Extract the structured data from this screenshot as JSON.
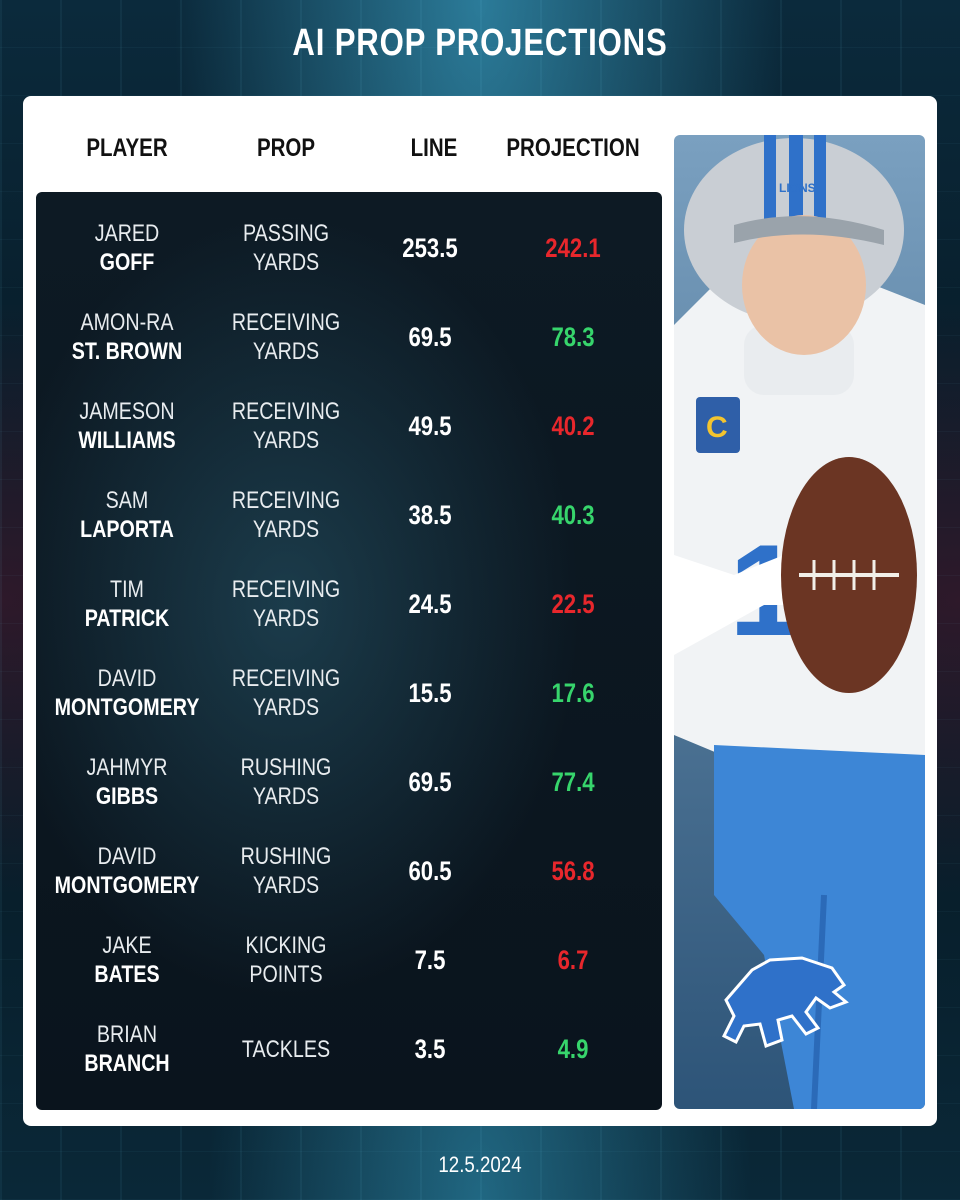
{
  "header": {
    "title": "AI PROP PROJECTIONS"
  },
  "columns": {
    "player": "PLAYER",
    "prop": "PROP",
    "line": "LINE",
    "projection": "PROJECTION"
  },
  "rows": [
    {
      "first": "JARED",
      "last": "GOFF",
      "prop1": "PASSING",
      "prop2": "YARDS",
      "line": "253.5",
      "projection": "242.1",
      "trend": "under"
    },
    {
      "first": "AMON-RA",
      "last": "ST. BROWN",
      "prop1": "RECEIVING",
      "prop2": "YARDS",
      "line": "69.5",
      "projection": "78.3",
      "trend": "over"
    },
    {
      "first": "JAMESON",
      "last": "WILLIAMS",
      "prop1": "RECEIVING",
      "prop2": "YARDS",
      "line": "49.5",
      "projection": "40.2",
      "trend": "under"
    },
    {
      "first": "SAM",
      "last": "LAPORTA",
      "prop1": "RECEIVING",
      "prop2": "YARDS",
      "line": "38.5",
      "projection": "40.3",
      "trend": "over"
    },
    {
      "first": "TIM",
      "last": "PATRICK",
      "prop1": "RECEIVING",
      "prop2": "YARDS",
      "line": "24.5",
      "projection": "22.5",
      "trend": "under"
    },
    {
      "first": "DAVID",
      "last": "MONTGOMERY",
      "prop1": "RECEIVING",
      "prop2": "YARDS",
      "line": "15.5",
      "projection": "17.6",
      "trend": "over"
    },
    {
      "first": "JAHMYR",
      "last": "GIBBS",
      "prop1": "RUSHING",
      "prop2": "YARDS",
      "line": "69.5",
      "projection": "77.4",
      "trend": "over"
    },
    {
      "first": "DAVID",
      "last": "MONTGOMERY",
      "prop1": "RUSHING",
      "prop2": "YARDS",
      "line": "60.5",
      "projection": "56.8",
      "trend": "under"
    },
    {
      "first": "JAKE",
      "last": "BATES",
      "prop1": "KICKING",
      "prop2": "POINTS",
      "line": "7.5",
      "projection": "6.7",
      "trend": "under"
    },
    {
      "first": "BRIAN",
      "last": "BRANCH",
      "prop1": "TACKLES",
      "prop2": "",
      "line": "3.5",
      "projection": "4.9",
      "trend": "over"
    }
  ],
  "photo": {
    "helmet_text": "LIONS",
    "jersey_number": "16",
    "icon": "lions-logo-icon"
  },
  "colors": {
    "over": "#37d56c",
    "under": "#e8272c",
    "panel": "#0b1620",
    "card": "#ffffff"
  },
  "footer": {
    "date": "12.5.2024"
  }
}
